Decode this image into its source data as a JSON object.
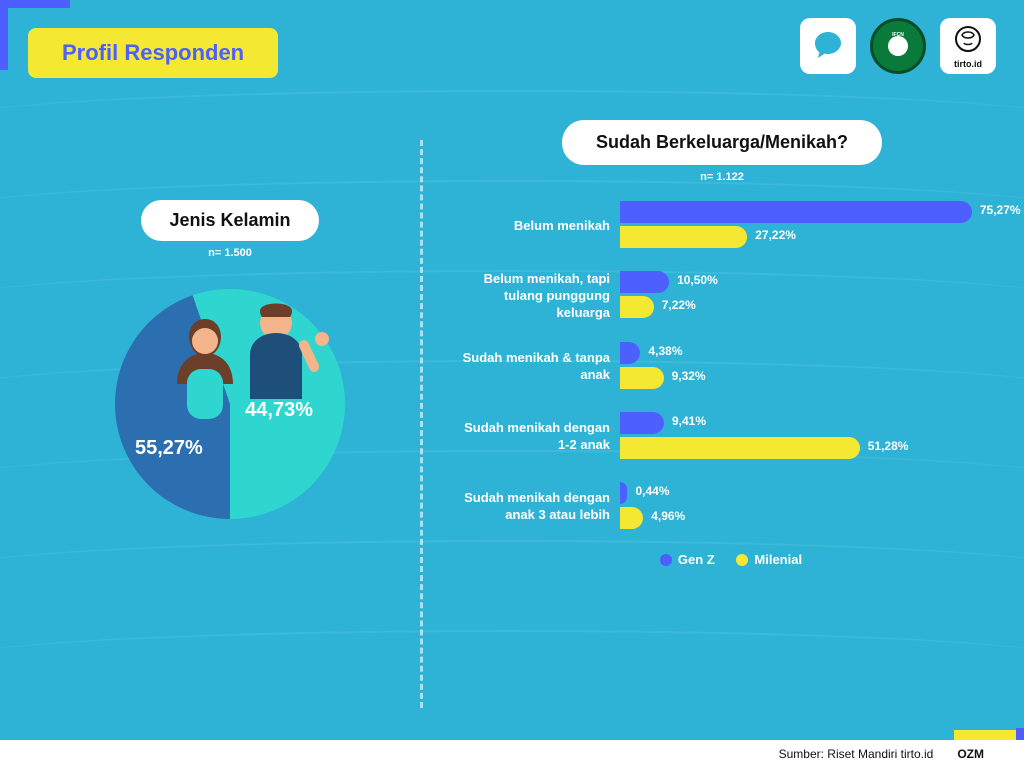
{
  "title": "Profil Responden",
  "colors": {
    "background": "#2eb3d6",
    "accent_yellow": "#f5e832",
    "accent_blue": "#4d5fff",
    "pie_female": "#2fd6d0",
    "pie_male": "#2b6fb0",
    "text_white": "#ffffff"
  },
  "logos": {
    "ifcn_label": "IFCN",
    "signatory_label": "SIGNATORY",
    "tirto_label": "tirto.id"
  },
  "gender_chart": {
    "type": "pie",
    "title": "Jenis Kelamin",
    "n_label": "n= 1.500",
    "slices": [
      {
        "label": "Perempuan",
        "value_pct": 55.27,
        "display": "55,27%",
        "color": "#2fd6d0"
      },
      {
        "label": "Laki-laki",
        "value_pct": 44.73,
        "display": "44,73%",
        "color": "#2b6fb0"
      }
    ]
  },
  "marital_chart": {
    "type": "bar",
    "title": "Sudah Berkeluarga/Menikah?",
    "n_label": "n= 1.122",
    "max_pct": 80,
    "series": [
      {
        "name": "Gen Z",
        "color": "#4d5fff"
      },
      {
        "name": "Milenial",
        "color": "#f5e832"
      }
    ],
    "categories": [
      {
        "label": "Belum menikah",
        "genz": {
          "pct": 75.27,
          "display": "75,27%"
        },
        "mil": {
          "pct": 27.22,
          "display": "27,22%"
        }
      },
      {
        "label": "Belum menikah, tapi tulang punggung keluarga",
        "genz": {
          "pct": 10.5,
          "display": "10,50%"
        },
        "mil": {
          "pct": 7.22,
          "display": "7,22%"
        }
      },
      {
        "label": "Sudah menikah & tanpa anak",
        "genz": {
          "pct": 4.38,
          "display": "4,38%"
        },
        "mil": {
          "pct": 9.32,
          "display": "9,32%"
        }
      },
      {
        "label": "Sudah menikah dengan 1-2 anak",
        "genz": {
          "pct": 9.41,
          "display": "9,41%"
        },
        "mil": {
          "pct": 51.28,
          "display": "51,28%"
        }
      },
      {
        "label": "Sudah menikah dengan anak 3 atau lebih",
        "genz": {
          "pct": 0.44,
          "display": "0,44%"
        },
        "mil": {
          "pct": 4.96,
          "display": "4,96%"
        }
      }
    ]
  },
  "legend": {
    "genz": "Gen Z",
    "milenial": "Milenial"
  },
  "footer": {
    "source": "Sumber: Riset Mandiri tirto.id",
    "credit": "OZM"
  }
}
